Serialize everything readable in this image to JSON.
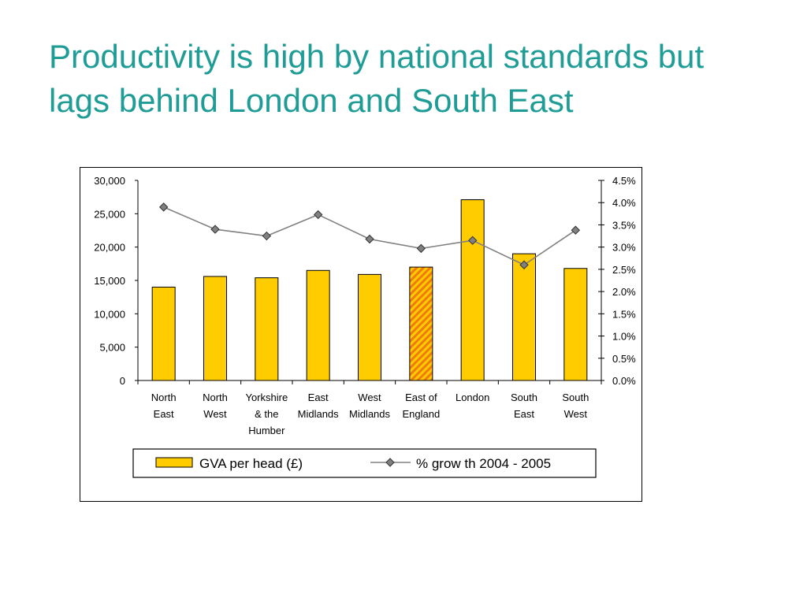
{
  "title": {
    "line1": "Productivity is high by national standards but",
    "line2": "lags behind London and South East"
  },
  "colors": {
    "title": "#1f9c96",
    "bar_fill": "#ffcc00",
    "highlight_bar_stripe": "#f07a10",
    "line": "#808080",
    "marker": "#808080"
  },
  "chart_data": {
    "type": "bar",
    "categories": [
      [
        "North",
        "East"
      ],
      [
        "North",
        "West"
      ],
      [
        "Yorkshire",
        "& the",
        "Humber"
      ],
      [
        "East",
        "Midlands"
      ],
      [
        "West",
        "Midlands"
      ],
      [
        "East of",
        "England"
      ],
      [
        "London"
      ],
      [
        "South",
        "East"
      ],
      [
        "South",
        "West"
      ]
    ],
    "highlight_index": 5,
    "series": [
      {
        "name": "GVA per head (£)",
        "type": "bar",
        "axis": "left",
        "values": [
          14000,
          15600,
          15400,
          16500,
          15900,
          17000,
          27100,
          19000,
          16800
        ]
      },
      {
        "name": "% grow th 2004 - 2005",
        "type": "line",
        "axis": "right",
        "values": [
          3.9,
          3.4,
          3.25,
          3.73,
          3.18,
          2.97,
          3.15,
          2.6,
          3.38
        ]
      }
    ],
    "y_left": {
      "ylim": [
        0,
        30000
      ],
      "ticks": [
        0,
        5000,
        10000,
        15000,
        20000,
        25000,
        30000
      ],
      "tick_labels": [
        "0",
        "5,000",
        "10,000",
        "15,000",
        "20,000",
        "25,000",
        "30,000"
      ]
    },
    "y_right": {
      "ylim": [
        0,
        4.5
      ],
      "ticks": [
        0,
        0.5,
        1.0,
        1.5,
        2.0,
        2.5,
        3.0,
        3.5,
        4.0,
        4.5
      ],
      "tick_labels": [
        "0.0%",
        "0.5%",
        "1.0%",
        "1.5%",
        "2.0%",
        "2.5%",
        "3.0%",
        "3.5%",
        "4.0%",
        "4.5%"
      ]
    },
    "grid": false,
    "legend_position": "bottom"
  }
}
